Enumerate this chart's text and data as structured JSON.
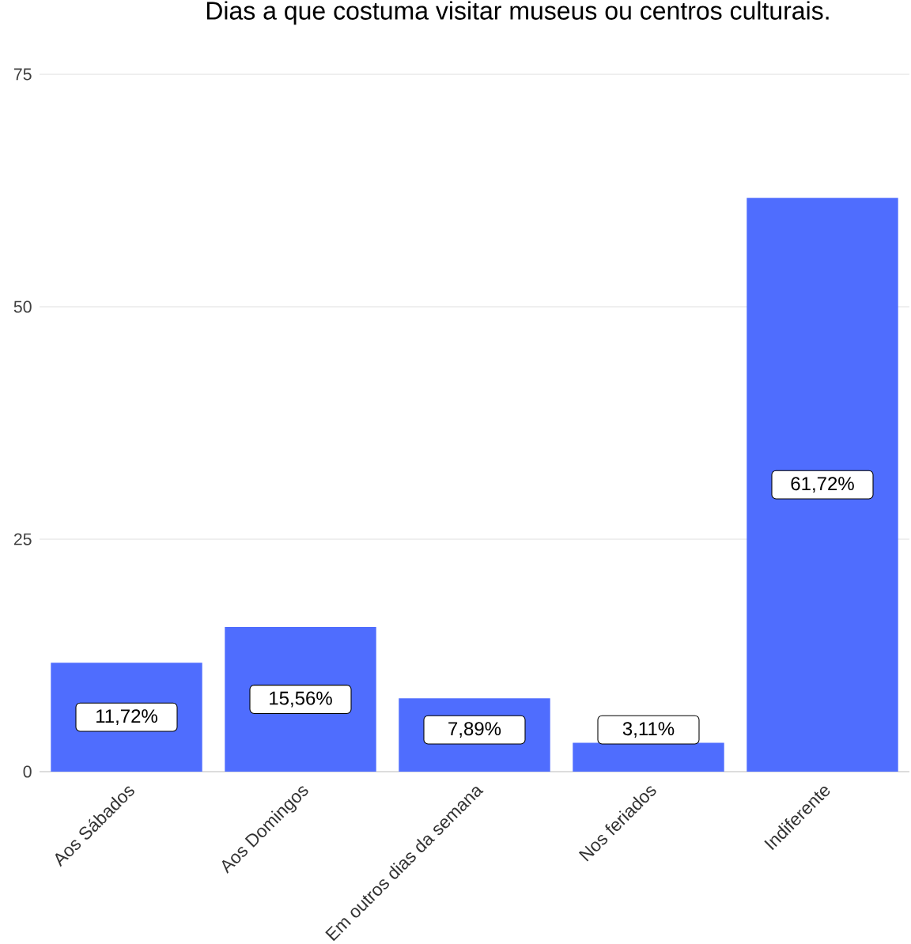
{
  "chart_data": {
    "type": "bar",
    "title": "Dias a que costuma visitar museus ou centros culturais.",
    "categories": [
      "Aos Sábados",
      "Aos Domingos",
      "Em outros dias da semana",
      "Nos feriados",
      "Indiferente"
    ],
    "values": [
      11.72,
      15.56,
      7.89,
      3.11,
      61.72
    ],
    "value_labels": [
      "11,72%",
      "15,56%",
      "7,89%",
      "3,11%",
      "61,72%"
    ],
    "color": "#4f6dfe",
    "ylim": [
      0,
      75
    ],
    "yticks": [
      0,
      25,
      50,
      75
    ],
    "grid": "y"
  }
}
